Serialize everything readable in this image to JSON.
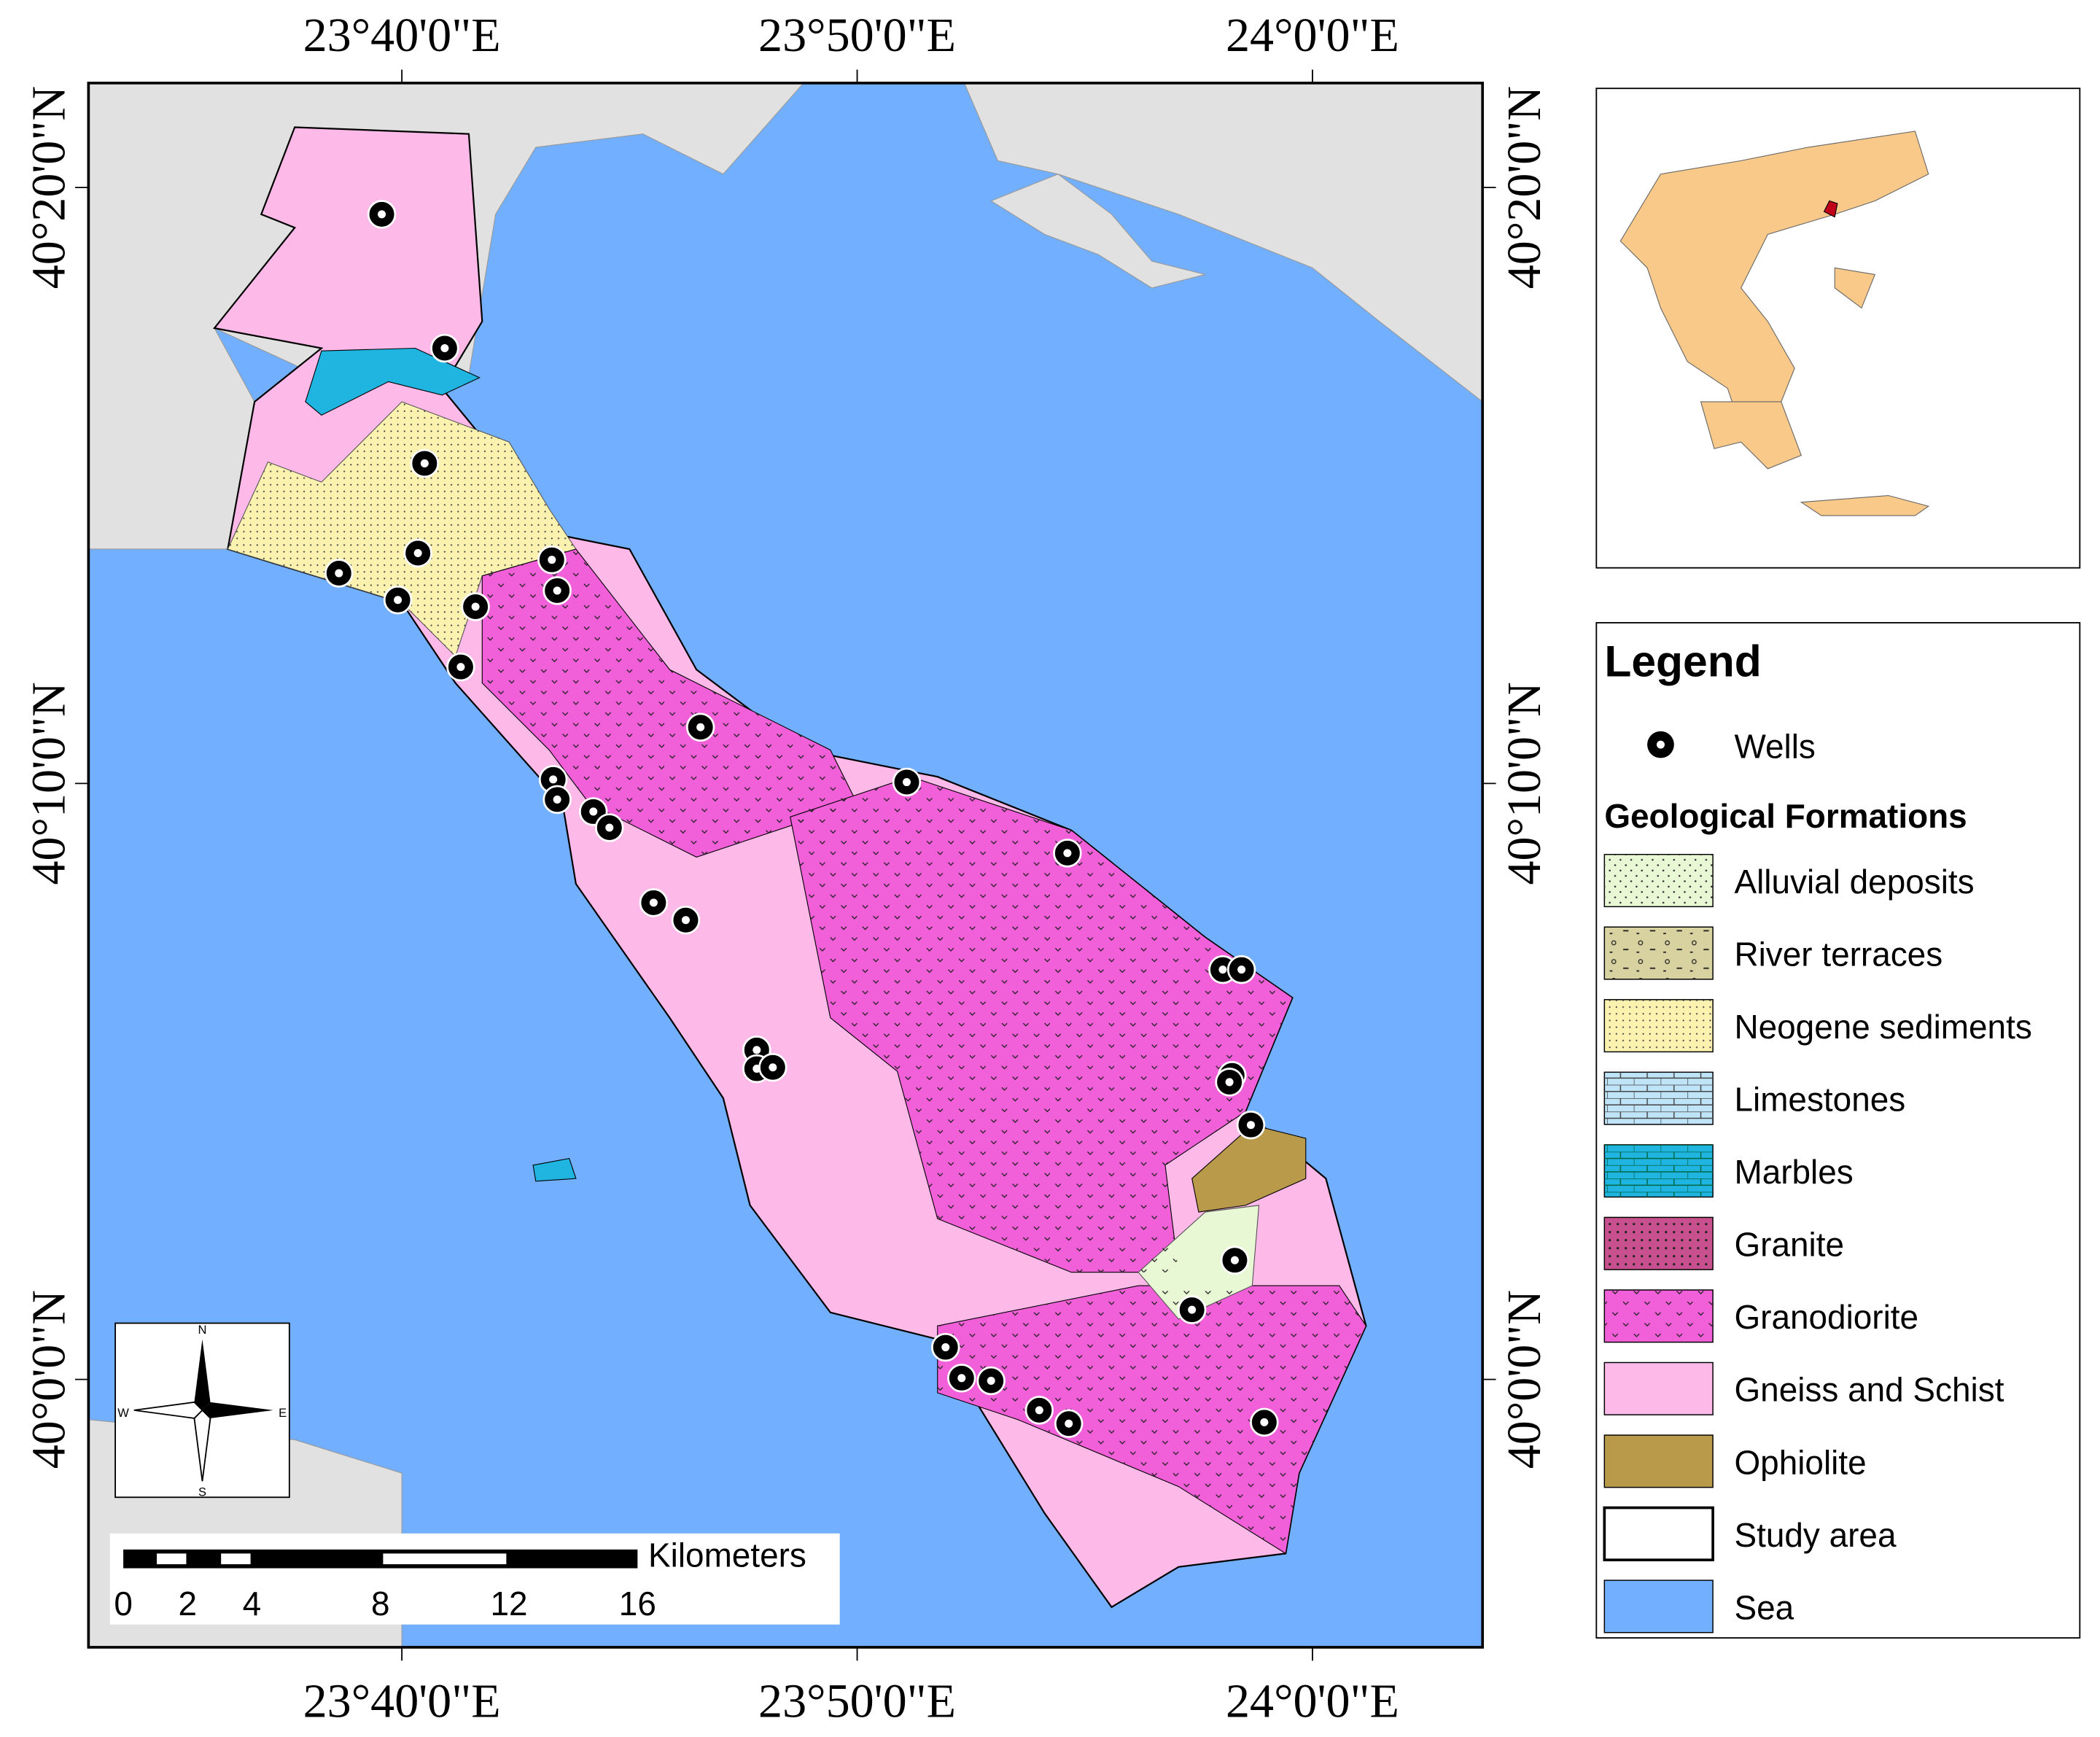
{
  "map": {
    "lon_labels_top": [
      "23°40'0\"E",
      "23°50'0\"E",
      "24°0'0\"E"
    ],
    "lon_labels_bottom": [
      "23°40'0\"E",
      "23°50'0\"E",
      "24°0'0\"E"
    ],
    "lat_labels_left": [
      "40°20'0\"N",
      "40°10'0\"N",
      "40°0'0\"N"
    ],
    "lat_labels_right": [
      "40°20'0\"N",
      "40°10'0\"N",
      "40°0'0\"N"
    ],
    "compass": {
      "n": "N",
      "w": "W",
      "e": "E",
      "s": "S"
    },
    "scale_bar": {
      "unit": "Kilometers",
      "labels": [
        0,
        2,
        4,
        8,
        12,
        16
      ]
    }
  },
  "legend": {
    "title": "Legend",
    "wells": "Wells",
    "section": "Geological Formations",
    "items": [
      {
        "name": "Alluvial deposits",
        "color": "#e8f7d4"
      },
      {
        "name": "River terraces",
        "color": "#d8d2a0"
      },
      {
        "name": "Neogene sediments",
        "color": "#fbf2b0"
      },
      {
        "name": "Limestones",
        "color": "#bfe4f7"
      },
      {
        "name": "Marbles",
        "color": "#1fb5e0"
      },
      {
        "name": "Granite",
        "color": "#c8508f"
      },
      {
        "name": "Granodiorite",
        "color": "#f15fd9"
      },
      {
        "name": "Gneiss and Schist",
        "color": "#fdb9e8"
      },
      {
        "name": "Ophiolite",
        "color": "#b89a4a"
      },
      {
        "name": "Study area",
        "color": "#ffffff"
      },
      {
        "name": "Sea",
        "color": "#72b0ff"
      }
    ]
  }
}
